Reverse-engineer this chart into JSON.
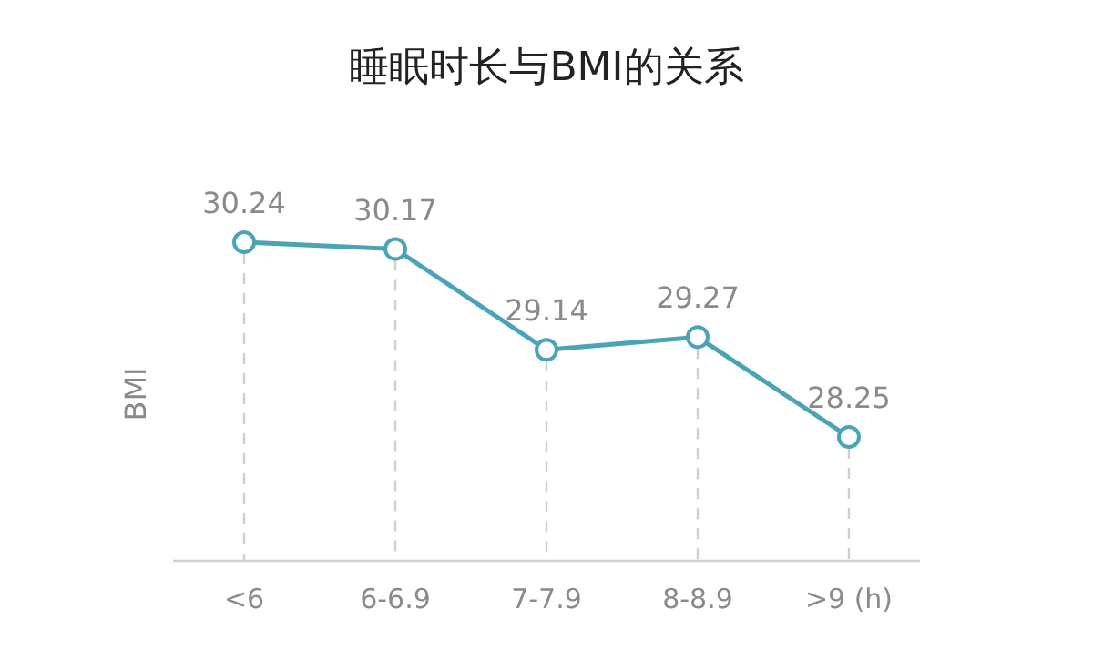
{
  "chart_data": {
    "type": "line",
    "title": "睡眠时长与BMI的关系",
    "ylabel": "BMI",
    "categories": [
      "<6",
      "6-6.9",
      "7-7.9",
      "8-8.9",
      ">9 (h)"
    ],
    "series": [
      {
        "color": "#4ba3b8",
        "values": [
          30.24,
          30.17,
          29.14,
          29.27,
          28.25
        ]
      }
    ],
    "tick_labels": "x",
    "data_labels": true,
    "marker": "circle",
    "line_style": "solid",
    "grid": "x"
  }
}
